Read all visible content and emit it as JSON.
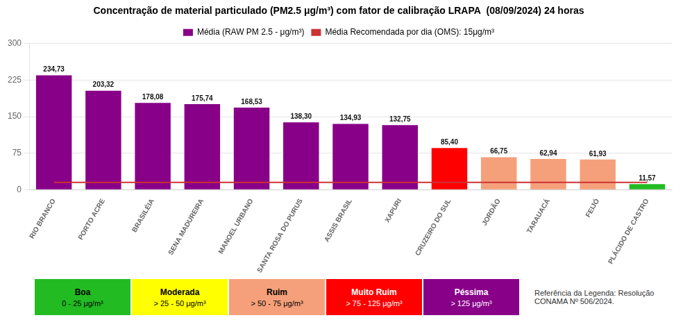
{
  "chart_data": {
    "type": "bar",
    "title": "Concentração de material particulado (PM2.5 μg/m³) com fator de calibração LRAPA  (08/09/2024) 24 horas",
    "categories": [
      "RIO BRANCO",
      "PORTO ACRE",
      "BRASILÉIA",
      "SENA MADUREIRA",
      "MANOEL URBANO",
      "SANTA ROSA DO PURUS",
      "ASSIS BRASIL",
      "XAPURI",
      "CRUZEIRO DO SUL",
      "JORDÃO",
      "TARAUACÁ",
      "FEIJÓ",
      "PLÁCIDO DE CASTRO"
    ],
    "series": [
      {
        "name": "Média (RAW PM 2.5 - μg/m³)",
        "type": "bar",
        "color": "#880088",
        "colors": [
          "#880088",
          "#880088",
          "#880088",
          "#880088",
          "#880088",
          "#880088",
          "#880088",
          "#880088",
          "#ff0000",
          "#f5a07a",
          "#f5a07a",
          "#f5a07a",
          "#22bb22"
        ],
        "values": [
          234.73,
          203.32,
          178.08,
          175.74,
          168.53,
          138.3,
          134.93,
          132.75,
          85.4,
          66.75,
          62.94,
          61.93,
          11.57
        ],
        "value_labels": [
          "234,73",
          "203,32",
          "178,08",
          "175,74",
          "168,53",
          "138,30",
          "134,93",
          "132,75",
          "85,40",
          "66,75",
          "62,94",
          "61,93",
          "11,57"
        ]
      },
      {
        "name": "Média Recomendada por dia (OMS): 15μg/m³",
        "type": "line",
        "color": "#cc3333",
        "values": [
          15,
          15,
          15,
          15,
          15,
          15,
          15,
          15,
          15,
          15,
          15,
          15,
          15
        ]
      }
    ],
    "ylim": [
      0,
      300
    ],
    "yticks": [
      0,
      75,
      150,
      225,
      300
    ],
    "grid": true,
    "data_labels": true,
    "legend": "top",
    "annotations": [
      {
        "text": "Boa",
        "subtext": "0 - 25 μg/m³",
        "color": "#22bb22",
        "text_color": "#000000"
      },
      {
        "text": "Moderada",
        "subtext": "> 25 - 50 μg/m³",
        "color": "#ffff00",
        "text_color": "#000000"
      },
      {
        "text": "Ruim",
        "subtext": "> 50 - 75 μg/m³",
        "color": "#f5a07a",
        "text_color": "#000000"
      },
      {
        "text": "Muito Ruim",
        "subtext": "> 75 - 125 μg/m³",
        "color": "#ff0000",
        "text_color": "#ffffff"
      },
      {
        "text": "Péssima",
        "subtext": "> 125 μg/m³",
        "color": "#880088",
        "text_color": "#ffffff"
      },
      {
        "text": "Referência da Legenda: Resolução\nCONAMA Nº 506/2024."
      }
    ]
  }
}
